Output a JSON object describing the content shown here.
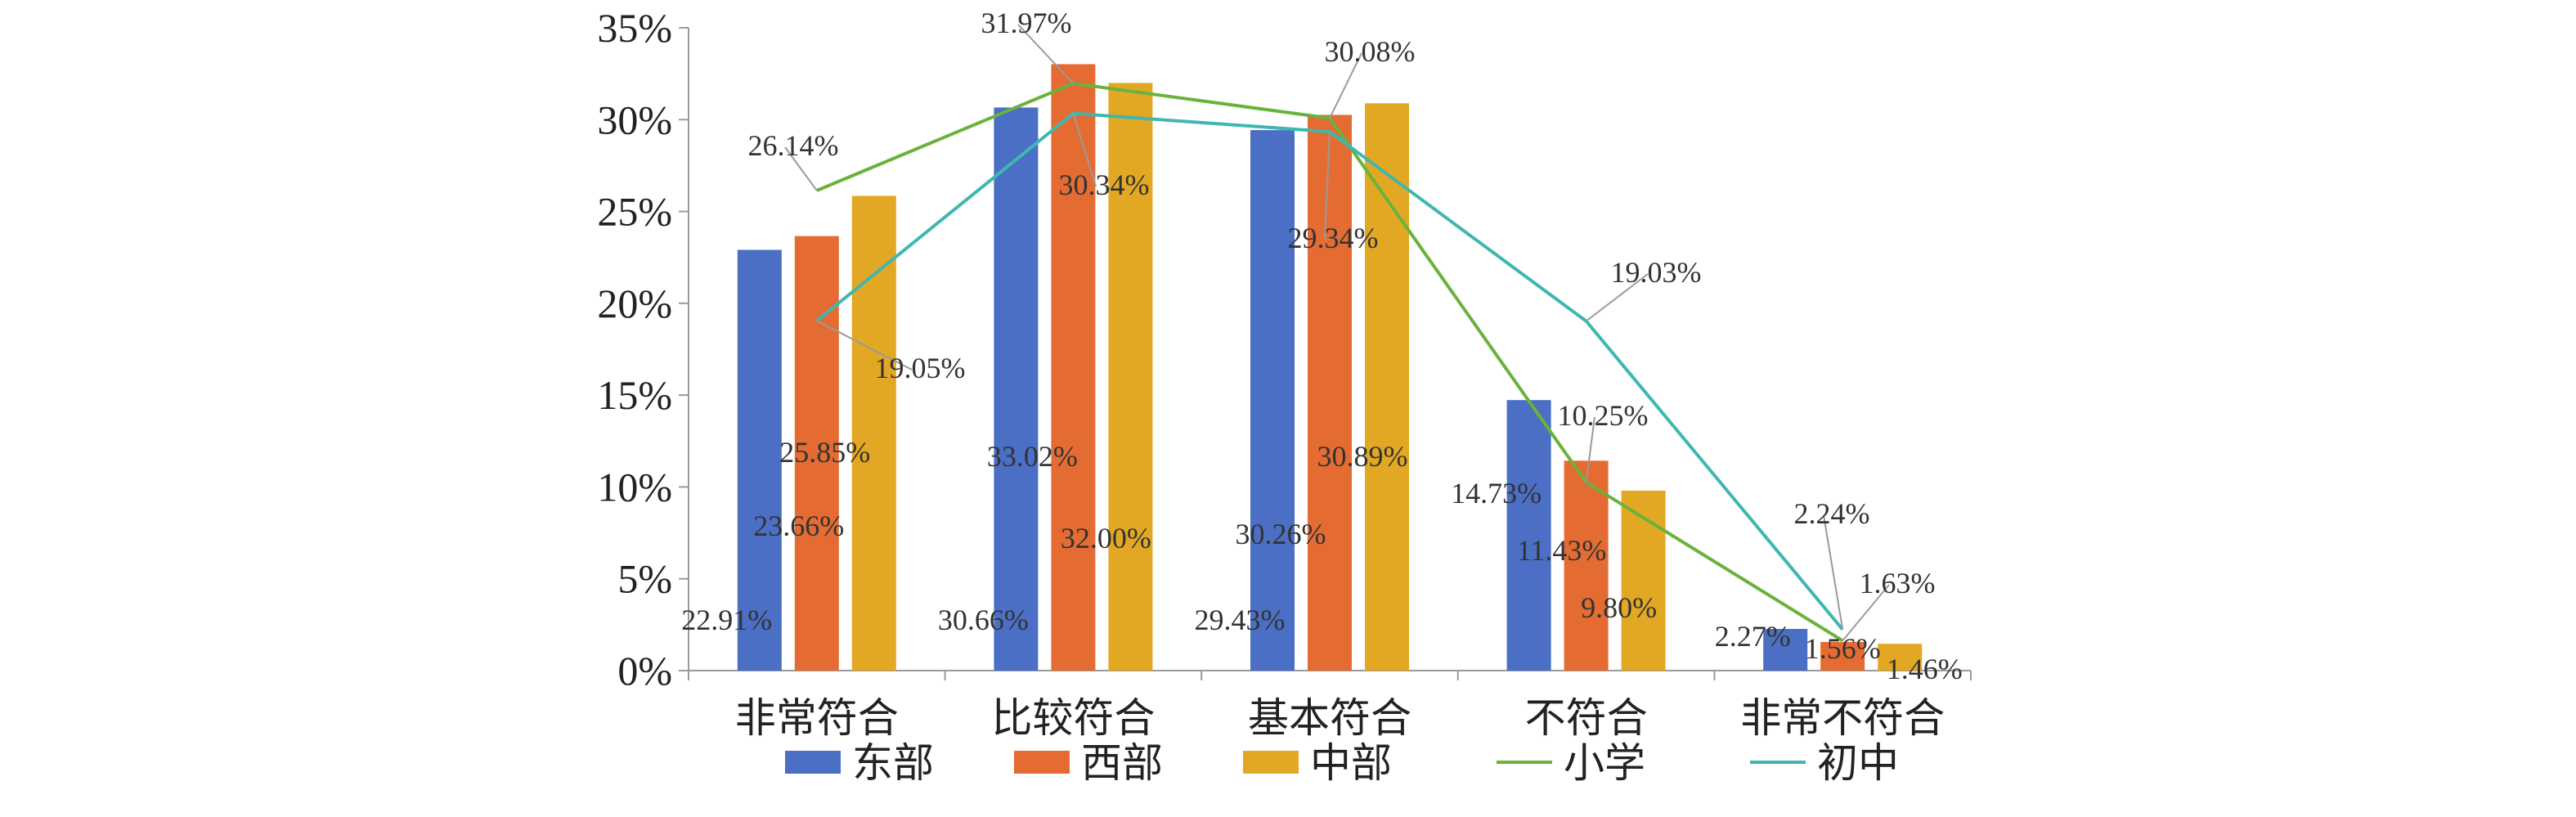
{
  "chart_data": {
    "type": "bar",
    "categories": [
      "非常符合",
      "比较符合",
      "基本符合",
      "不符合",
      "非常不符合"
    ],
    "ylim": [
      0,
      35
    ],
    "yticks": [
      0,
      5,
      10,
      15,
      20,
      25,
      30,
      35
    ],
    "ytick_labels": [
      "0%",
      "5%",
      "10%",
      "15%",
      "20%",
      "25%",
      "30%",
      "35%"
    ],
    "grid": false,
    "legend_position": "bottom",
    "series": [
      {
        "name": "东部",
        "kind": "bar",
        "color": "#4A6FC4",
        "values": [
          22.91,
          30.66,
          29.43,
          14.73,
          2.27
        ],
        "labels": [
          "22.91%",
          "30.66%",
          "29.43%",
          "14.73%",
          "2.27%"
        ]
      },
      {
        "name": "西部",
        "kind": "bar",
        "color": "#E46C32",
        "values": [
          23.66,
          33.02,
          30.26,
          11.43,
          1.56
        ],
        "labels": [
          "23.66%",
          "33.02%",
          "30.26%",
          "11.43%",
          "1.56%"
        ]
      },
      {
        "name": "中部",
        "kind": "bar",
        "color": "#E3A823",
        "values": [
          25.85,
          32.0,
          30.89,
          9.8,
          1.46
        ],
        "labels": [
          "25.85%",
          "32.00%",
          "30.89%",
          "9.80%",
          "1.46%"
        ]
      },
      {
        "name": "小学",
        "kind": "line",
        "color": "#6AB23C",
        "values": [
          26.14,
          31.97,
          30.08,
          10.25,
          1.63
        ],
        "labels": [
          "26.14%",
          "31.97%",
          "30.08%",
          "10.25%",
          "1.63%"
        ]
      },
      {
        "name": "初中",
        "kind": "line",
        "color": "#3FB7B0",
        "values": [
          19.05,
          30.34,
          29.34,
          19.03,
          2.24
        ],
        "labels": [
          "19.05%",
          "30.34%",
          "29.34%",
          "19.03%",
          "2.24%"
        ]
      }
    ]
  }
}
